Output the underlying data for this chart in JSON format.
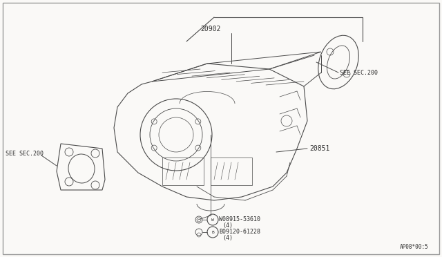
{
  "background_color": "#faf9f7",
  "line_color": "#4a4a4a",
  "text_color": "#2a2a2a",
  "font_size": 6.5,
  "diagram_code": "AP08*00:5",
  "part_20902": "20902",
  "part_20851": "20851",
  "sec200_left": "SEE SEC.200",
  "sec200_right": "SEE SEC.200",
  "w_part": "W08915-53610",
  "b_part": "B09120-61228",
  "qty4": "(4)"
}
